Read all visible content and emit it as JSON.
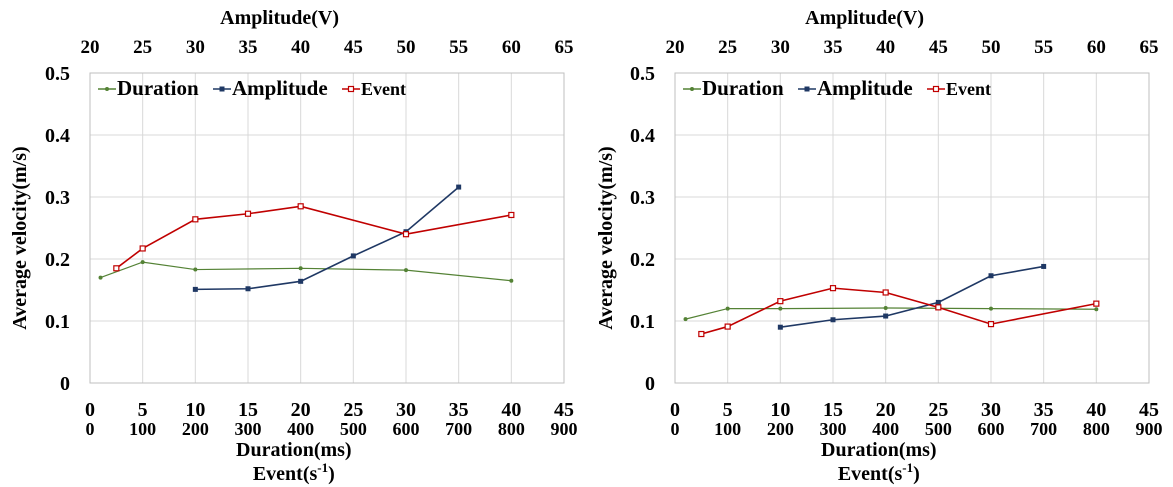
{
  "chart_data": [
    {
      "type": "line",
      "top_axis": {
        "label": "Amplitude(V)",
        "ticks": [
          "20",
          "25",
          "30",
          "35",
          "40",
          "45",
          "50",
          "55",
          "60",
          "65"
        ],
        "range": [
          20,
          65
        ]
      },
      "bottom_axis_1": {
        "ticks": [
          "0",
          "5",
          "10",
          "15",
          "20",
          "25",
          "30",
          "35",
          "40",
          "45"
        ],
        "range": [
          0,
          45
        ]
      },
      "bottom_axis_2": {
        "ticks": [
          "0",
          "100",
          "200",
          "300",
          "400",
          "500",
          "600",
          "700",
          "800",
          "900"
        ],
        "range": [
          0,
          900
        ]
      },
      "xlabel_1": "Duration(ms)",
      "xlabel_2": "Event(s",
      "xlabel_2_sup": "-1",
      "xlabel_2_end": ")",
      "ylabel": "Average velocity(m/s)",
      "y_ticks": [
        "0",
        "0.1",
        "0.2",
        "0.3",
        "0.4",
        "0.5"
      ],
      "ylim": [
        0,
        0.5
      ],
      "legend_position": "top-left",
      "series": [
        {
          "name": "Duration",
          "axis": "bottom_1",
          "color": "#548235",
          "marker": "dot",
          "x": [
            1,
            5,
            10,
            20,
            30,
            40
          ],
          "y": [
            0.17,
            0.195,
            0.183,
            0.185,
            0.182,
            0.165
          ]
        },
        {
          "name": "Amplitude",
          "axis": "top",
          "color": "#1f3864",
          "marker": "square",
          "x": [
            30,
            35,
            40,
            45,
            50,
            55
          ],
          "y": [
            0.151,
            0.152,
            0.164,
            0.205,
            0.244,
            0.316
          ]
        },
        {
          "name": "Event",
          "axis": "bottom_2",
          "color": "#c00000",
          "marker": "open-square",
          "x": [
            50,
            100,
            200,
            300,
            400,
            600,
            800
          ],
          "y": [
            0.185,
            0.217,
            0.264,
            0.273,
            0.285,
            0.24,
            0.271
          ]
        }
      ]
    },
    {
      "type": "line",
      "top_axis": {
        "label": "Amplitude(V)",
        "ticks": [
          "20",
          "25",
          "30",
          "35",
          "40",
          "45",
          "50",
          "55",
          "60",
          "65"
        ],
        "range": [
          20,
          65
        ]
      },
      "bottom_axis_1": {
        "ticks": [
          "0",
          "5",
          "10",
          "15",
          "20",
          "25",
          "30",
          "35",
          "40",
          "45"
        ],
        "range": [
          0,
          45
        ]
      },
      "bottom_axis_2": {
        "ticks": [
          "0",
          "100",
          "200",
          "300",
          "400",
          "500",
          "600",
          "700",
          "800",
          "900"
        ],
        "range": [
          0,
          900
        ]
      },
      "xlabel_1": "Duration(ms)",
      "xlabel_2": "Event(s",
      "xlabel_2_sup": "-1",
      "xlabel_2_end": ")",
      "ylabel": "Average velocity(m/s)",
      "y_ticks": [
        "0",
        "0.1",
        "0.2",
        "0.3",
        "0.4",
        "0.5"
      ],
      "ylim": [
        0,
        0.5
      ],
      "legend_position": "top-left",
      "series": [
        {
          "name": "Duration",
          "axis": "bottom_1",
          "color": "#548235",
          "marker": "dot",
          "x": [
            1,
            5,
            10,
            20,
            30,
            40
          ],
          "y": [
            0.103,
            0.12,
            0.12,
            0.121,
            0.12,
            0.119
          ]
        },
        {
          "name": "Amplitude",
          "axis": "top",
          "color": "#1f3864",
          "marker": "square",
          "x": [
            30,
            35,
            40,
            45,
            50,
            55
          ],
          "y": [
            0.09,
            0.102,
            0.108,
            0.13,
            0.173,
            0.188
          ]
        },
        {
          "name": "Event",
          "axis": "bottom_2",
          "color": "#c00000",
          "marker": "open-square",
          "x": [
            50,
            100,
            200,
            300,
            400,
            500,
            600,
            800
          ],
          "y": [
            0.079,
            0.091,
            0.132,
            0.153,
            0.146,
            0.122,
            0.095,
            0.128
          ]
        }
      ]
    }
  ]
}
